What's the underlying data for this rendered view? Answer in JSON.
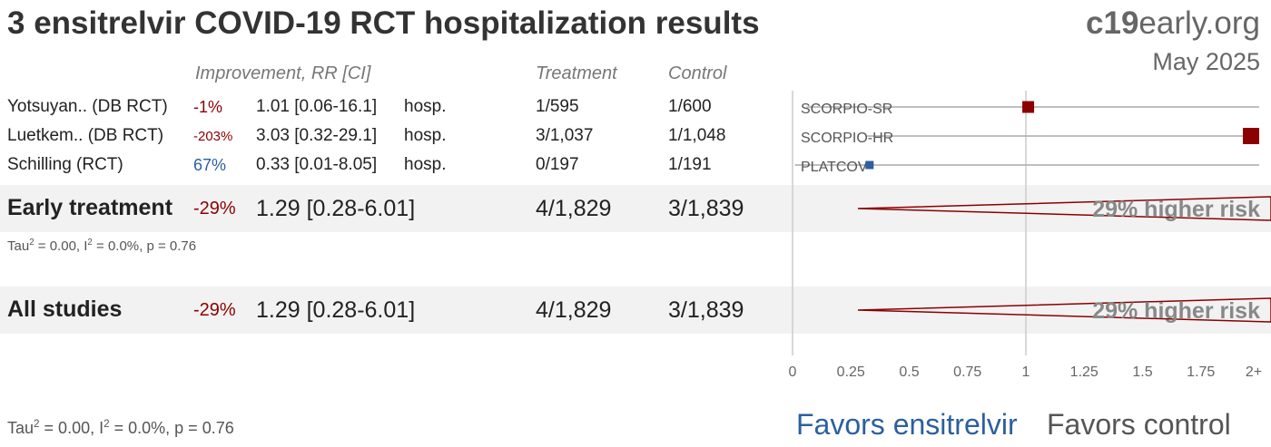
{
  "title": "3 ensitrelvir COVID-19 RCT hospitalization results",
  "brand": {
    "bold": "c19",
    "rest": "early.org"
  },
  "date": "May 2025",
  "headers": {
    "improvement": "Improvement, RR [CI]",
    "treatment": "Treatment",
    "control": "Control"
  },
  "studies": [
    {
      "name": "Yotsuyan.. (DB RCT)",
      "improvement": "-1%",
      "rr_ci": "1.01 [0.06-16.1]",
      "outcome": "hosp.",
      "treatment": "1/595",
      "control": "1/600",
      "label": "SCORPIO-SR"
    },
    {
      "name": "Luetkem.. (DB RCT)",
      "improvement": "-203%",
      "rr_ci": "3.03 [0.32-29.1]",
      "outcome": "hosp.",
      "treatment": "3/1,037",
      "control": "1/1,048",
      "label": "SCORPIO-HR"
    },
    {
      "name": "Schilling (RCT)",
      "improvement": "67%",
      "rr_ci": "0.33 [0.01-8.05]",
      "outcome": "hosp.",
      "treatment": "0/197",
      "control": "1/191",
      "label": "PLATCOV"
    }
  ],
  "early": {
    "name": "Early treatment",
    "improvement": "-29%",
    "rr_ci": "1.29 [0.28-6.01]",
    "treatment": "4/1,829",
    "control": "3/1,839",
    "risk_label": "29% higher risk",
    "stat": {
      "tau": "Tau",
      "tau_sup": "2",
      "tau_val": " = 0.00, I",
      "i_sup": "2",
      "rest": " = 0.0%, p = 0.76"
    }
  },
  "all": {
    "name": "All studies",
    "improvement": "-29%",
    "rr_ci": "1.29 [0.28-6.01]",
    "treatment": "4/1,829",
    "control": "3/1,839",
    "risk_label": "29% higher risk"
  },
  "bottom_stat": {
    "tau": "Tau",
    "tau_sup": "2",
    "tau_val": " = 0.00, I",
    "i_sup": "2",
    "rest": " = 0.0%, p = 0.76"
  },
  "favors": {
    "left": "Favors ensitrelvir",
    "right": "Favors control"
  },
  "chart_data": {
    "type": "forest",
    "x_axis": {
      "ticks": [
        0,
        0.25,
        0.5,
        0.75,
        1,
        1.25,
        1.5,
        1.75,
        2
      ],
      "tick_labels": [
        "0",
        "0.25",
        "0.5",
        "0.75",
        "1",
        "1.25",
        "1.5",
        "1.75",
        "2+"
      ],
      "range": [
        0,
        2
      ]
    },
    "studies": [
      {
        "name": "SCORPIO-SR",
        "rr": 1.01,
        "ci": [
          0.06,
          16.1
        ],
        "color": "#8b0000"
      },
      {
        "name": "SCORPIO-HR",
        "rr": 3.03,
        "ci": [
          0.32,
          29.1
        ],
        "color": "#8b0000"
      },
      {
        "name": "PLATCOV",
        "rr": 0.33,
        "ci": [
          0.01,
          8.05
        ],
        "color": "#2c5f9e"
      }
    ],
    "summaries": [
      {
        "name": "Early treatment",
        "rr": 1.29,
        "ci": [
          0.28,
          6.01
        ]
      },
      {
        "name": "All studies",
        "rr": 1.29,
        "ci": [
          0.28,
          6.01
        ]
      }
    ],
    "colors": {
      "harm": "#8b0000",
      "benefit": "#2c5f9e",
      "line": "#aaaaaa"
    }
  }
}
